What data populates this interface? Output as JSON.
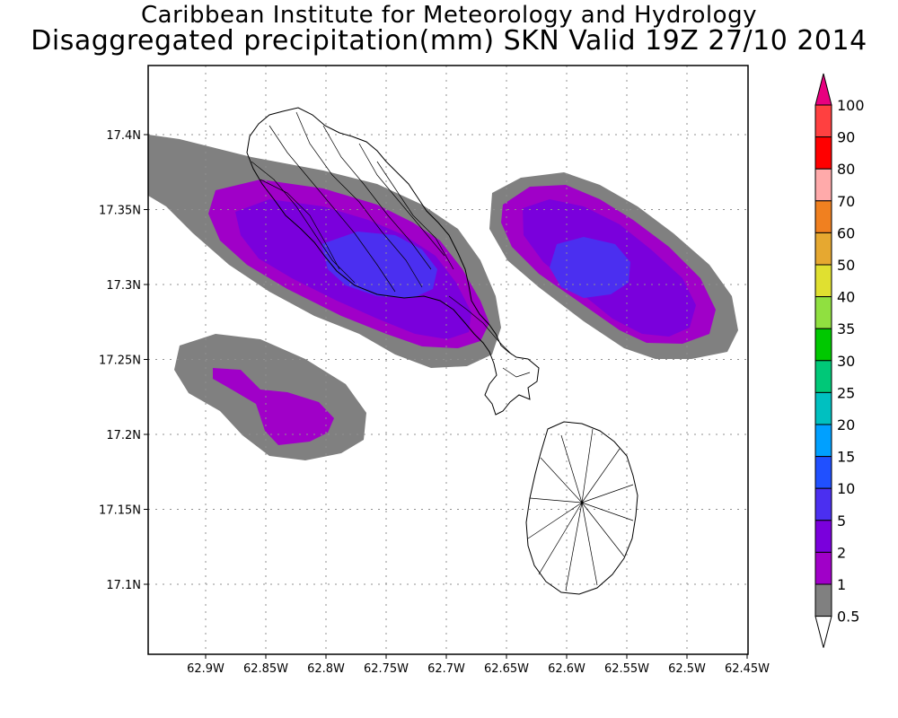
{
  "header": {
    "title": "Caribbean Institute for Meteorology and Hydrology",
    "subtitle": "Disaggregated precipitation(mm) SKN Valid 19Z 27/10 2014"
  },
  "map": {
    "lon_ticks": [
      "62.9W",
      "62.85W",
      "62.8W",
      "62.75W",
      "62.7W",
      "62.65W",
      "62.6W",
      "62.55W",
      "62.5W",
      "62.45W"
    ],
    "lat_ticks": [
      "17.4N",
      "17.35N",
      "17.3N",
      "17.25N",
      "17.2N",
      "17.15N",
      "17.1N"
    ],
    "grid": "dotted"
  },
  "colorbar": {
    "levels": [
      {
        "label": "100",
        "color": "#e8007f"
      },
      {
        "label": "90",
        "color": "#ff4040"
      },
      {
        "label": "80",
        "color": "#ff0000"
      },
      {
        "label": "70",
        "color": "#ffaaaa"
      },
      {
        "label": "60",
        "color": "#f08020"
      },
      {
        "label": "50",
        "color": "#e6a830"
      },
      {
        "label": "40",
        "color": "#e0e030"
      },
      {
        "label": "35",
        "color": "#90e040"
      },
      {
        "label": "30",
        "color": "#00c800"
      },
      {
        "label": "25",
        "color": "#00c878"
      },
      {
        "label": "20",
        "color": "#00c0c0"
      },
      {
        "label": "15",
        "color": "#00a0ff"
      },
      {
        "label": "10",
        "color": "#2050ff"
      },
      {
        "label": "5",
        "color": "#4b2ff0"
      },
      {
        "label": "2",
        "color": "#7a00dc"
      },
      {
        "label": "1",
        "color": "#a000c8"
      },
      {
        "label": "0.5",
        "color": "#808080"
      }
    ]
  }
}
